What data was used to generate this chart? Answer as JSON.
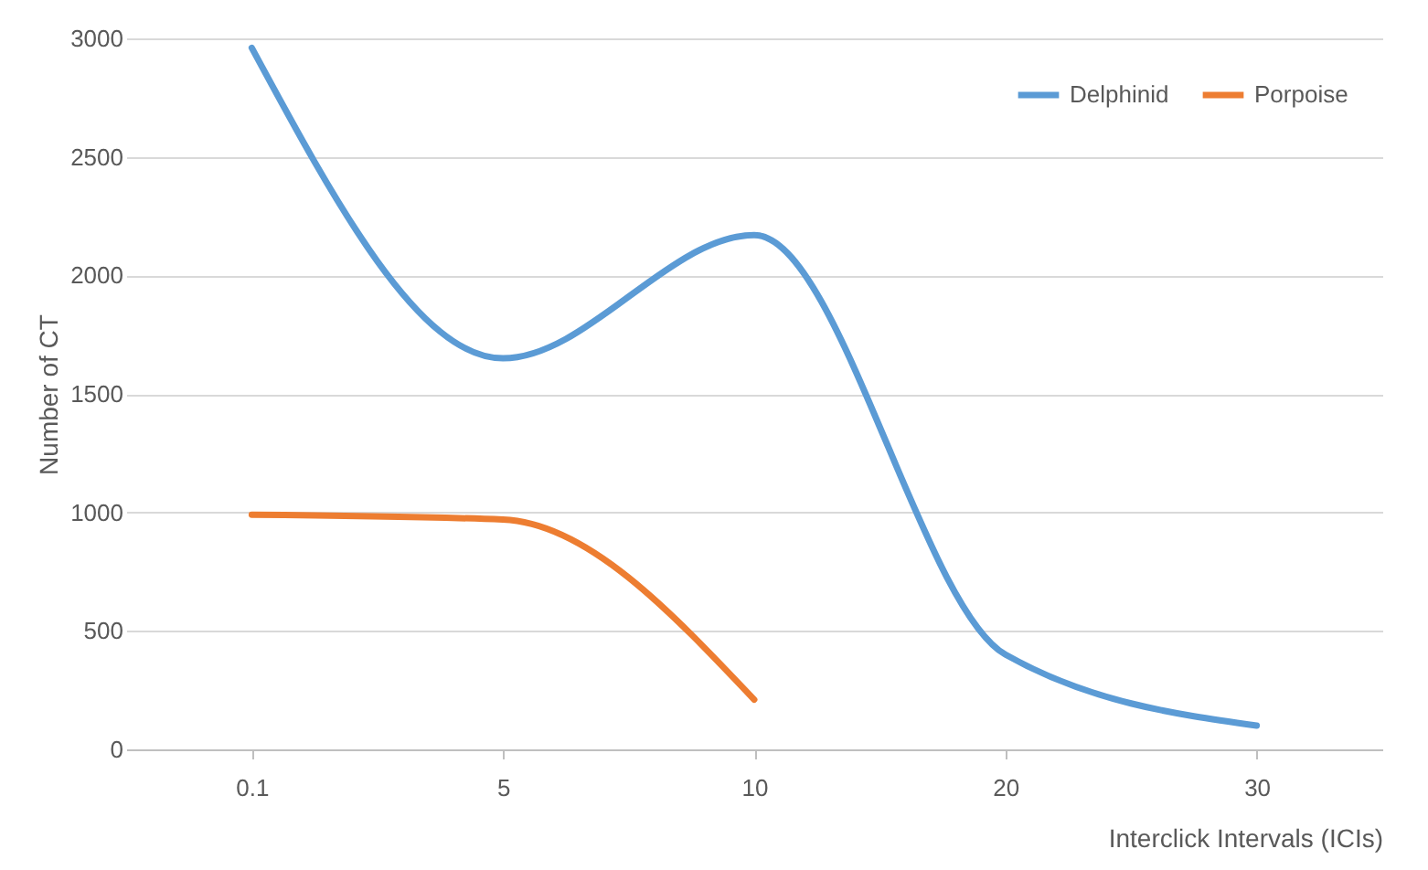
{
  "chart_data": {
    "type": "line",
    "xlabel": "Interclick Intervals (ICIs)",
    "ylabel": "Number of CT",
    "categories": [
      "0.1",
      "5",
      "10",
      "20",
      "30"
    ],
    "series": [
      {
        "name": "Delphinid",
        "color": "#5b9bd5",
        "values": [
          2960,
          1650,
          2170,
          400,
          100
        ]
      },
      {
        "name": "Porpoise",
        "color": "#ed7d31",
        "values": [
          990,
          970,
          210,
          null,
          null
        ]
      }
    ],
    "ylim": [
      0,
      3000
    ],
    "yticks": [
      0,
      500,
      1000,
      1500,
      2000,
      2500,
      3000
    ],
    "grid": "y",
    "legend": "top right",
    "marker": "none",
    "line_style": "solid"
  }
}
